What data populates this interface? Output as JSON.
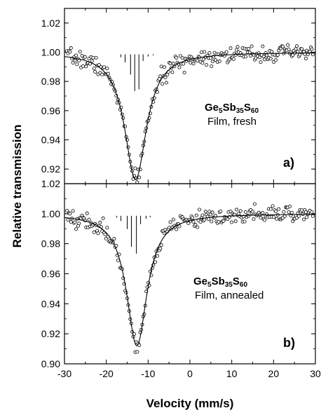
{
  "chart_data": [
    {
      "type": "scatter",
      "panel_label": "a",
      "panel_label_suffix": ")",
      "annotation": {
        "formula": [
          "Ge",
          "5",
          "Sb",
          "35",
          "S",
          "60"
        ],
        "description": "Film, fresh"
      },
      "xlabel": "Velocity (mm/s)",
      "ylabel": "Relative transmission",
      "xlim": [
        -30,
        30
      ],
      "ylim": [
        0.91,
        1.03
      ],
      "yticks": [
        "1.02",
        "1.00",
        "0.98",
        "0.96",
        "0.94",
        "0.92"
      ],
      "fit_curve": {
        "baseline": 1.0,
        "center": -13.0,
        "depth": 0.087,
        "half_width": 3.2
      },
      "components": [
        {
          "position": -16.5,
          "intensity": 0.08
        },
        {
          "position": -15.5,
          "intensity": 0.22
        },
        {
          "position": -14.2,
          "intensity": 0.55
        },
        {
          "position": -13.2,
          "intensity": 1.0
        },
        {
          "position": -12.2,
          "intensity": 0.95
        },
        {
          "position": -11.2,
          "intensity": 0.18
        },
        {
          "position": -10.0,
          "intensity": 0.06
        },
        {
          "position": -8.8,
          "intensity": 0.03
        }
      ],
      "scatter_seed": 7
    },
    {
      "type": "scatter",
      "panel_label": "b",
      "panel_label_suffix": ")",
      "annotation": {
        "formula": [
          "Ge",
          "5",
          "Sb",
          "35",
          "S",
          "60"
        ],
        "description": "Film, annealed"
      },
      "xlabel": "Velocity (mm/s)",
      "ylabel": "Relative transmission",
      "xlim": [
        -30,
        30
      ],
      "ylim": [
        0.9,
        1.02
      ],
      "yticks": [
        "1.02",
        "1.00",
        "0.98",
        "0.96",
        "0.94",
        "0.92",
        "0.90"
      ],
      "xticks": [
        "-30",
        "-20",
        "-10",
        "0",
        "10",
        "20",
        "30"
      ],
      "fit_curve": {
        "baseline": 1.0,
        "center": -12.7,
        "depth": 0.088,
        "half_width": 3.0
      },
      "components": [
        {
          "position": -17.5,
          "intensity": 0.05
        },
        {
          "position": -16.5,
          "intensity": 0.14
        },
        {
          "position": -15.0,
          "intensity": 0.35
        },
        {
          "position": -14.0,
          "intensity": 0.82
        },
        {
          "position": -12.8,
          "intensity": 1.0
        },
        {
          "position": -11.8,
          "intensity": 0.22
        },
        {
          "position": -10.5,
          "intensity": 0.08
        },
        {
          "position": -9.5,
          "intensity": 0.04
        }
      ],
      "scatter_seed": 19
    }
  ]
}
